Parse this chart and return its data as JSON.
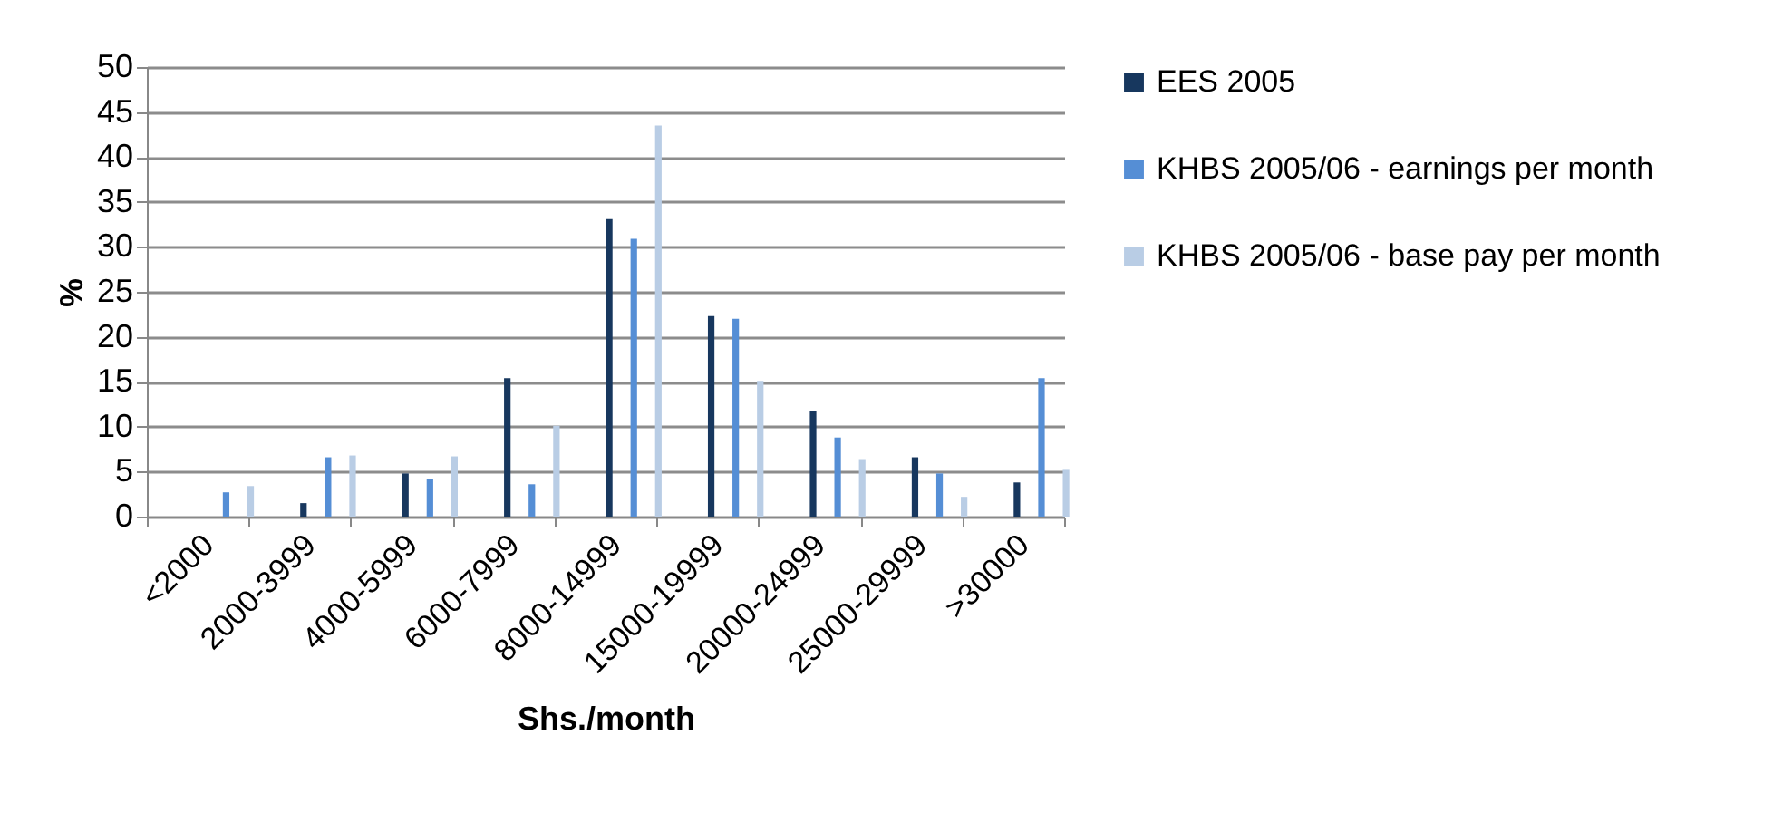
{
  "chart_data": {
    "type": "bar",
    "xlabel": "Shs./month",
    "ylabel": "%",
    "categories": [
      "<2000",
      "2000-3999",
      "4000-5999",
      "6000-7999",
      "8000-14999",
      "15000-19999",
      "20000-24999",
      "25000-29999",
      ">30000"
    ],
    "series": [
      {
        "name": "EES 2005",
        "color": "#17375e",
        "values": [
          0,
          1.5,
          4.8,
          15.4,
          33.1,
          22.3,
          11.7,
          6.6,
          3.8
        ]
      },
      {
        "name": "KHBS 2005/06 - earnings per month",
        "color": "#558ed5",
        "values": [
          2.7,
          6.6,
          4.2,
          3.6,
          30.9,
          22.0,
          8.8,
          4.8,
          15.4
        ]
      },
      {
        "name": "KHBS 2005/06 - base pay per month",
        "color": "#b9cde5",
        "values": [
          3.4,
          6.8,
          6.7,
          10.1,
          43.5,
          15.1,
          6.4,
          2.2,
          5.2
        ]
      }
    ],
    "ylim": [
      0,
      50
    ],
    "yticks": [
      0,
      5,
      10,
      15,
      20,
      25,
      30,
      35,
      40,
      45,
      50
    ],
    "grid": "y",
    "legend": "right"
  }
}
